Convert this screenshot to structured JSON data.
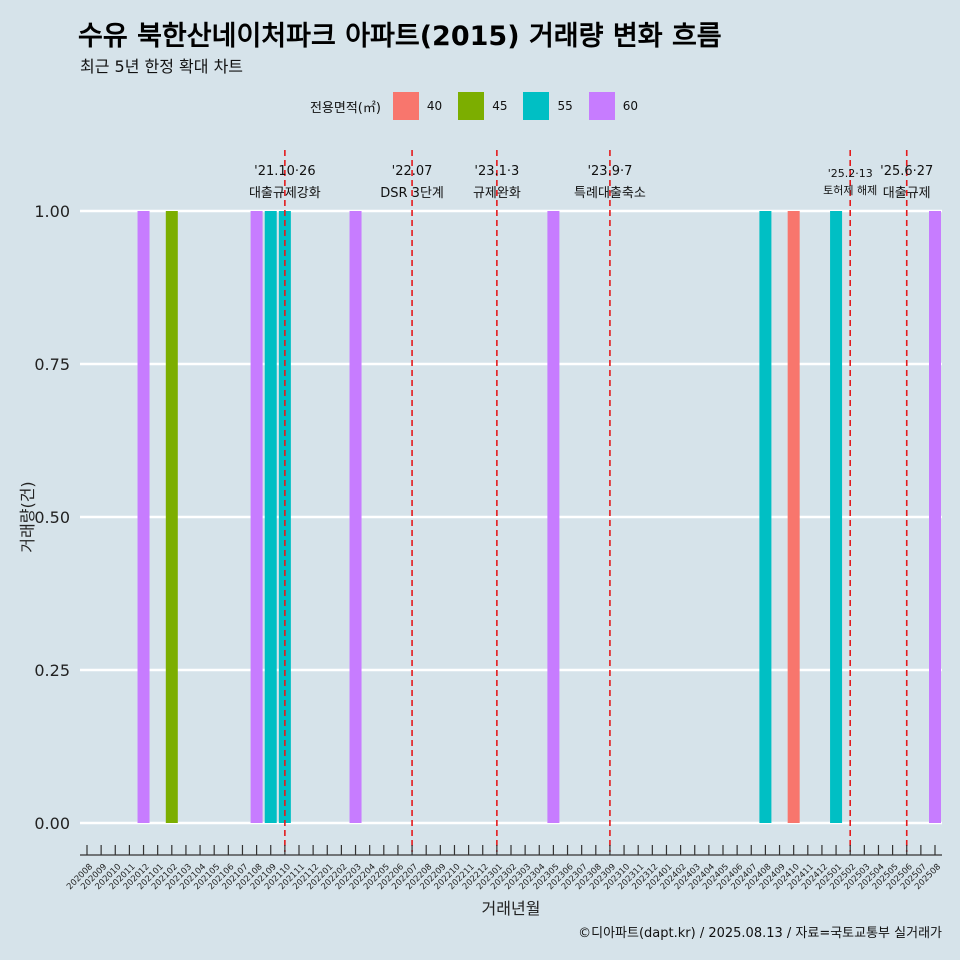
{
  "title": "수유 북한산네이처파크 아파트(2015) 거래량 변화 흐름",
  "subtitle": "최근 5년 한정 확대 차트",
  "legend": {
    "title": "전용면적(㎡)",
    "items": [
      {
        "label": "40",
        "color": "#f8766d"
      },
      {
        "label": "45",
        "color": "#7cae00"
      },
      {
        "label": "55",
        "color": "#00bfc4"
      },
      {
        "label": "60",
        "color": "#c77cff"
      }
    ]
  },
  "caption": "©디아파트(dapt.kr) / 2025.08.13 / 자료=국토교통부 실거래가",
  "chart_data": {
    "type": "bar",
    "xlabel": "거래년월",
    "ylabel": "거래량(건)",
    "ylim": [
      0,
      1
    ],
    "yticks": [
      "0.00",
      "0.25",
      "0.50",
      "0.75",
      "1.00"
    ],
    "grid": true,
    "legend_position": "top",
    "categories": [
      "202008",
      "202009",
      "202010",
      "202011",
      "202012",
      "202101",
      "202102",
      "202103",
      "202104",
      "202105",
      "202106",
      "202107",
      "202108",
      "202109",
      "202110",
      "202111",
      "202112",
      "202201",
      "202202",
      "202203",
      "202204",
      "202205",
      "202206",
      "202207",
      "202208",
      "202209",
      "202210",
      "202211",
      "202212",
      "202301",
      "202302",
      "202303",
      "202304",
      "202305",
      "202306",
      "202307",
      "202308",
      "202309",
      "202310",
      "202311",
      "202312",
      "202401",
      "202402",
      "202403",
      "202404",
      "202405",
      "202406",
      "202407",
      "202408",
      "202409",
      "202410",
      "202411",
      "202412",
      "202501",
      "202502",
      "202503",
      "202504",
      "202505",
      "202506",
      "202507",
      "202508"
    ],
    "bars": [
      {
        "month": "202012",
        "area": "60",
        "value": 1
      },
      {
        "month": "202102",
        "area": "45",
        "value": 1
      },
      {
        "month": "202108",
        "area": "60",
        "value": 1
      },
      {
        "month": "202109",
        "area": "55",
        "value": 1
      },
      {
        "month": "202110",
        "area": "55",
        "value": 1
      },
      {
        "month": "202203",
        "area": "60",
        "value": 1
      },
      {
        "month": "202305",
        "area": "60",
        "value": 1
      },
      {
        "month": "202408",
        "area": "55",
        "value": 1
      },
      {
        "month": "202410",
        "area": "40",
        "value": 1
      },
      {
        "month": "202501",
        "area": "55",
        "value": 1
      },
      {
        "month": "202508",
        "area": "60",
        "value": 1
      }
    ],
    "events": [
      {
        "month": "202110",
        "date": "'21.10·26",
        "label": "대출규제강화"
      },
      {
        "month": "202207",
        "date": "'22.07",
        "label": "DSR 3단계"
      },
      {
        "month": "202301",
        "date": "'23.1·3",
        "label": "규제완화"
      },
      {
        "month": "202309",
        "date": "'23.9·7",
        "label": "특례대출축소"
      },
      {
        "month": "202502",
        "date": "'25.2·13",
        "label": "토허제 해제"
      },
      {
        "month": "202506",
        "date": "'25.6·27",
        "label": "대출규제"
      }
    ]
  }
}
